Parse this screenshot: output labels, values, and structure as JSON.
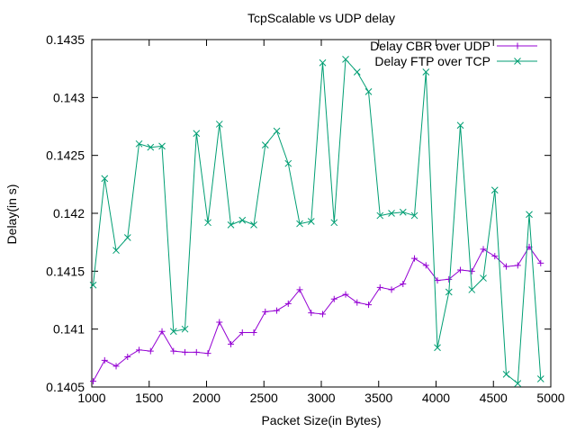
{
  "chart_data": {
    "type": "line",
    "title": "TcpScalable vs UDP delay",
    "xlabel": "Packet Size(in Bytes)",
    "ylabel": "Delay(in s)",
    "xlim": [
      1000,
      5000
    ],
    "ylim": [
      0.1405,
      0.1435
    ],
    "x_ticks": [
      1000,
      1500,
      2000,
      2500,
      3000,
      3500,
      4000,
      4500,
      5000
    ],
    "y_ticks": [
      0.1405,
      0.141,
      0.1415,
      0.142,
      0.1425,
      0.143,
      0.1435
    ],
    "x_tick_labels": [
      "1000",
      "1500",
      "2000",
      "2500",
      "3000",
      "3500",
      "4000",
      "4500",
      "5000"
    ],
    "y_tick_labels": [
      "0.1405",
      "0.141",
      "0.1415",
      "0.142",
      "0.1425",
      "0.143",
      "0.1435"
    ],
    "grid": false,
    "legend_position": "top-right",
    "x": [
      1012,
      1112,
      1212,
      1312,
      1412,
      1512,
      1612,
      1712,
      1812,
      1912,
      2012,
      2112,
      2212,
      2312,
      2412,
      2512,
      2612,
      2712,
      2812,
      2912,
      3012,
      3112,
      3212,
      3312,
      3412,
      3512,
      3612,
      3712,
      3812,
      3912,
      4012,
      4112,
      4212,
      4312,
      4412,
      4512,
      4612,
      4712,
      4812,
      4912
    ],
    "series": [
      {
        "name": "Delay CBR over UDP",
        "color": "#9400d3",
        "marker": "plus",
        "values": [
          0.14055,
          0.14073,
          0.14068,
          0.14076,
          0.14082,
          0.14081,
          0.14098,
          0.14081,
          0.1408,
          0.1408,
          0.14079,
          0.14106,
          0.14087,
          0.14097,
          0.14097,
          0.14115,
          0.14116,
          0.14122,
          0.14134,
          0.14114,
          0.14113,
          0.14126,
          0.1413,
          0.14123,
          0.14121,
          0.14136,
          0.14134,
          0.14139,
          0.14161,
          0.14155,
          0.14142,
          0.14143,
          0.14151,
          0.1415,
          0.14169,
          0.14163,
          0.14154,
          0.14155,
          0.14171,
          0.14157
        ]
      },
      {
        "name": "Delay FTP over TCP",
        "color": "#009e73",
        "marker": "cross",
        "values": [
          0.14138,
          0.1423,
          0.14168,
          0.14179,
          0.1426,
          0.14257,
          0.14258,
          0.14098,
          0.141,
          0.14269,
          0.14192,
          0.14277,
          0.1419,
          0.14194,
          0.1419,
          0.14259,
          0.14271,
          0.14243,
          0.14191,
          0.14193,
          0.1433,
          0.14192,
          0.14333,
          0.14322,
          0.14305,
          0.14198,
          0.142,
          0.14201,
          0.14198,
          0.14322,
          0.14084,
          0.14132,
          0.14276,
          0.14134,
          0.14144,
          0.1422,
          0.14061,
          0.14053,
          0.14199,
          0.14057
        ]
      }
    ]
  }
}
